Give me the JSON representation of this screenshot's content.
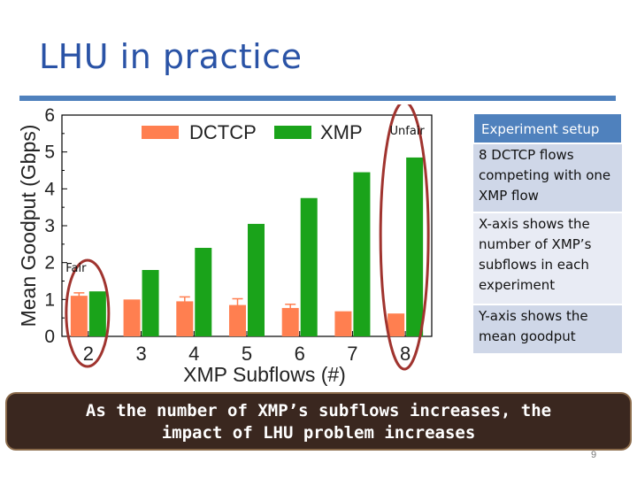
{
  "slide": {
    "title": "LHU in practice",
    "banner_line1": "As the number of XMP’s subflows increases, the",
    "banner_line2": "impact of LHU problem increases",
    "slide_number": "9"
  },
  "setup": {
    "heading": "Experiment setup",
    "items": [
      "8 DCTCP flows competing with one XMP flow",
      "X-axis shows the number of XMP’s subflows in each experiment",
      "Y-axis shows the mean goodput"
    ]
  },
  "annotations": {
    "fair": "Fair",
    "unfair": "Unfair"
  },
  "colors": {
    "dctcp": "#ff7f50",
    "xmp": "#1aa31a",
    "title": "#2a53a6",
    "accent": "#4f81bd",
    "ellipse": "#a0342f"
  },
  "chart_data": {
    "type": "bar",
    "title": "",
    "xlabel": "XMP Subflows (#)",
    "ylabel": "Mean Goodput (Gbps)",
    "categories": [
      "2",
      "3",
      "4",
      "5",
      "6",
      "7",
      "8"
    ],
    "series": [
      {
        "name": "DCTCP",
        "values": [
          1.1,
          1.0,
          0.95,
          0.85,
          0.77,
          0.68,
          0.62
        ],
        "errors": [
          0.08,
          0.0,
          0.12,
          0.17,
          0.1,
          0.0,
          0.0
        ]
      },
      {
        "name": "XMP",
        "values": [
          1.22,
          1.8,
          2.4,
          3.05,
          3.75,
          4.45,
          4.85
        ]
      }
    ],
    "ylim": [
      0,
      6
    ],
    "yticks": [
      "0",
      "1",
      "2",
      "3",
      "4",
      "5",
      "6"
    ],
    "legend_position": "top-center",
    "grid": false
  }
}
